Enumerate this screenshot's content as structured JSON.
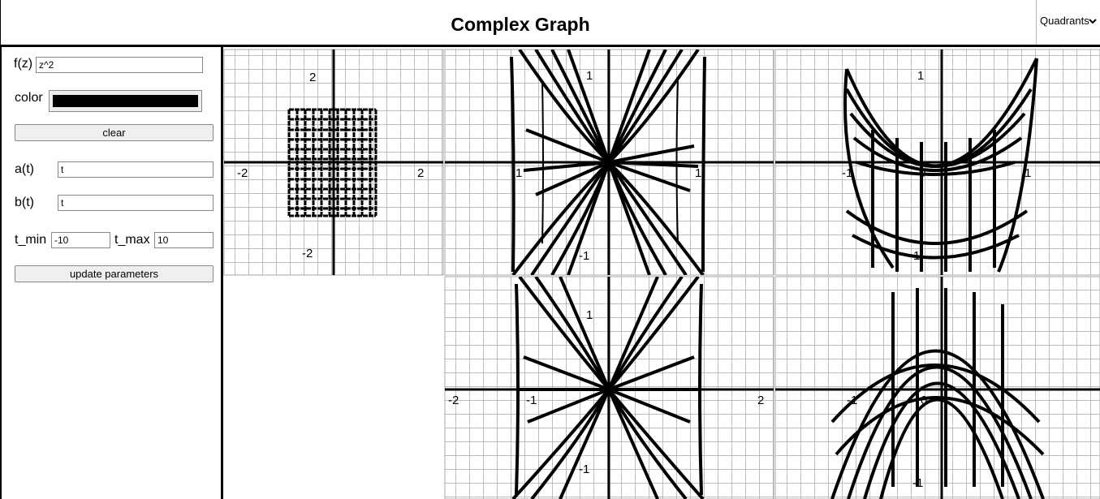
{
  "header": {
    "title": "Complex Graph",
    "mode_select": "Quadrants",
    "chevron_icon": "chevron-down-icon"
  },
  "sidebar": {
    "fz_label": "f(z)",
    "fz_value": "z^2",
    "color_label": "color",
    "color_value": "#000000",
    "clear_label": "clear",
    "a_label": "a(t)",
    "a_value": "t",
    "b_label": "b(t)",
    "b_value": "t",
    "tmin_label": "t_min",
    "tmin_value": "-10",
    "tmax_label": "t_max",
    "tmax_value": "10",
    "update_label": "update parameters"
  },
  "plots": {
    "input": {
      "x_ticks": [
        "-2",
        "2"
      ],
      "y_ticks": [
        "2",
        "-2"
      ]
    },
    "real_part": {
      "x_ticks": [
        "-1",
        "1"
      ],
      "y_ticks": [
        "1",
        "-1"
      ]
    },
    "imag_part": {
      "x_ticks": [
        "-1",
        "0",
        "1"
      ],
      "y_ticks": [
        "1",
        "-1"
      ]
    },
    "modulus": {
      "x_ticks": [
        "-2",
        "-1",
        "2"
      ],
      "y_ticks": [
        "1",
        "-1"
      ]
    },
    "argument": {
      "x_ticks": [
        "-1",
        "0"
      ],
      "y_ticks": [
        "-1"
      ]
    }
  }
}
